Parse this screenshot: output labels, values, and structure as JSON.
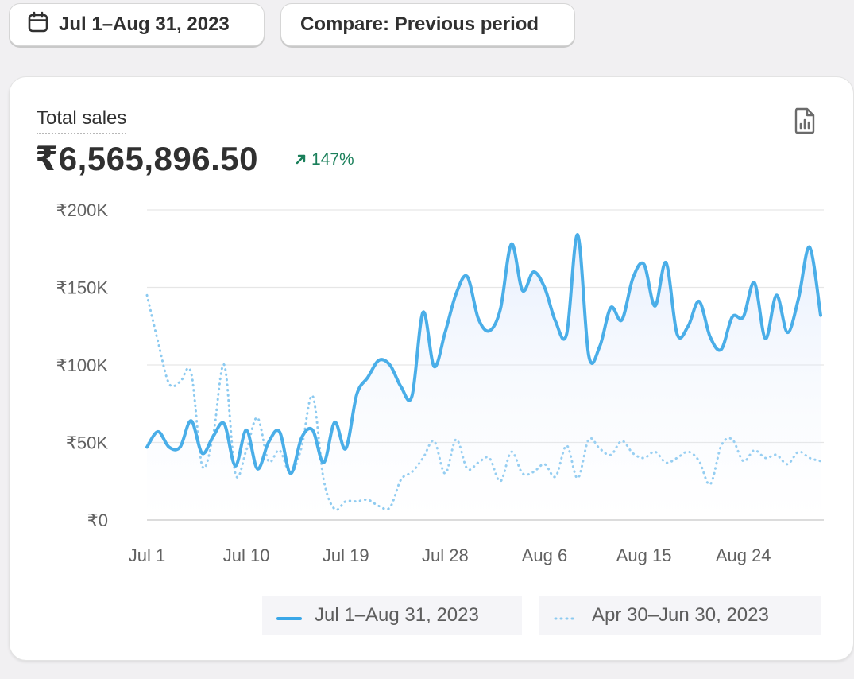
{
  "filters": {
    "date_range_label": "Jul 1–Aug 31, 2023",
    "compare_label": "Compare: Previous period"
  },
  "metric": {
    "title": "Total sales",
    "value": "₹6,565,896.50",
    "change": "147%",
    "change_direction": "up",
    "change_color": "#1a7f5a"
  },
  "icons": {
    "date_pill": "calendar-icon",
    "report": "report-document-icon",
    "change": "arrow-up-right-icon"
  },
  "chart_data": {
    "type": "line",
    "y_ticks": [
      "₹200K",
      "₹150K",
      "₹100K",
      "₹50K",
      "₹0"
    ],
    "y_tick_values": [
      200000,
      150000,
      100000,
      50000,
      0
    ],
    "ylim": [
      0,
      200000
    ],
    "x_ticks": [
      "Jul 1",
      "Jul 10",
      "Jul 19",
      "Jul 28",
      "Aug 6",
      "Aug 15",
      "Aug 24"
    ],
    "x_tick_days": [
      0,
      9,
      18,
      27,
      36,
      45,
      54
    ],
    "xlim_days": [
      0,
      61
    ],
    "grid": true,
    "legend_position": "bottom",
    "series": [
      {
        "name": "Jul 1–Aug 31, 2023",
        "style": "solid",
        "color": "#4aaee8",
        "values": [
          47000,
          57000,
          47000,
          47000,
          64000,
          43000,
          54000,
          62000,
          35000,
          58000,
          33000,
          50000,
          57000,
          30000,
          53000,
          58000,
          37000,
          63000,
          46000,
          81000,
          92000,
          103000,
          100000,
          86000,
          80000,
          134000,
          99000,
          121000,
          146000,
          157000,
          130000,
          122000,
          136000,
          178000,
          148000,
          160000,
          150000,
          128000,
          120000,
          184000,
          106000,
          112000,
          137000,
          129000,
          156000,
          165000,
          138000,
          166000,
          120000,
          125000,
          141000,
          118000,
          110000,
          131000,
          131000,
          153000,
          117000,
          145000,
          121000,
          143000,
          176000,
          132000
        ]
      },
      {
        "name": "Apr 30–Jun 30, 2023",
        "style": "dotted",
        "color": "#8ccaf0",
        "values": [
          145000,
          115000,
          88000,
          89000,
          95000,
          35000,
          55000,
          100000,
          30000,
          45000,
          66000,
          38000,
          45000,
          30000,
          47000,
          80000,
          26000,
          7000,
          12000,
          12000,
          13000,
          9000,
          8000,
          26000,
          31000,
          40000,
          51000,
          30000,
          52000,
          33000,
          37000,
          40000,
          25000,
          44000,
          30000,
          31000,
          36000,
          28000,
          48000,
          27000,
          52000,
          46000,
          42000,
          51000,
          43000,
          40000,
          44000,
          37000,
          40000,
          44000,
          38000,
          23000,
          48000,
          52000,
          38000,
          45000,
          40000,
          42000,
          36000,
          44000,
          40000,
          38000
        ]
      }
    ]
  }
}
